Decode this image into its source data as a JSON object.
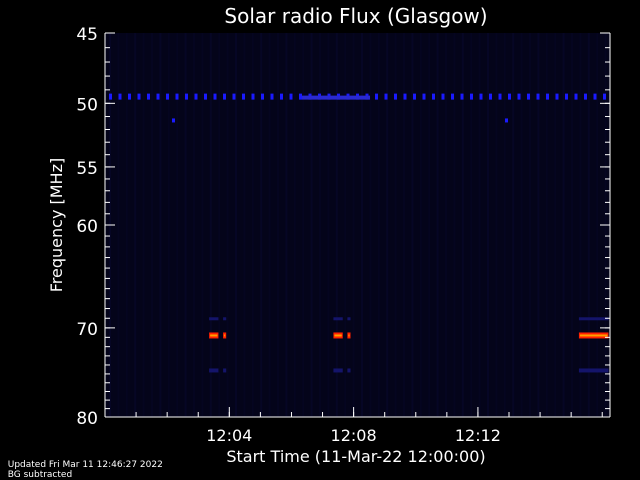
{
  "chart_data": {
    "type": "heatmap",
    "title": "Solar radio Flux (Glasgow)",
    "xlabel": "Start Time (11-Mar-22 12:00:00)",
    "ylabel": "Frequency [MHz]",
    "x_range_minutes": [
      0,
      16.25
    ],
    "x_ticks": [
      {
        "minute": 4,
        "label": "12:04"
      },
      {
        "minute": 8,
        "label": "12:08"
      },
      {
        "minute": 12,
        "label": "12:12"
      }
    ],
    "y_range": [
      45,
      80
    ],
    "y_scale": "log",
    "y_inverted": true,
    "y_ticks": [
      {
        "value": 45,
        "label": "45"
      },
      {
        "value": 50,
        "label": "50"
      },
      {
        "value": 55,
        "label": "55"
      },
      {
        "value": 60,
        "label": "60"
      },
      {
        "value": 70,
        "label": "70"
      },
      {
        "value": 80,
        "label": "80"
      }
    ],
    "colors": {
      "background": "#000000",
      "plot_background": "#04041a",
      "weak_emission": "#1a1aff",
      "strong_emission": "#ff2000",
      "peak_emission": "#ffa000"
    },
    "interference_band": {
      "freq_mhz": 49.5,
      "intensity": "weak"
    },
    "features": [
      {
        "start_minute": 3.35,
        "end_minute": 3.65,
        "freq_mhz": 70.8,
        "intensity": "strong"
      },
      {
        "start_minute": 3.8,
        "end_minute": 3.9,
        "freq_mhz": 70.8,
        "intensity": "strong"
      },
      {
        "start_minute": 7.35,
        "end_minute": 7.65,
        "freq_mhz": 70.8,
        "intensity": "strong"
      },
      {
        "start_minute": 7.8,
        "end_minute": 7.9,
        "freq_mhz": 70.8,
        "intensity": "strong"
      },
      {
        "start_minute": 15.25,
        "end_minute": 16.2,
        "freq_mhz": 70.8,
        "intensity": "strong"
      }
    ]
  },
  "footer": {
    "updated": "Updated Fri Mar 11 12:46:27 2022",
    "note": "BG subtracted"
  }
}
